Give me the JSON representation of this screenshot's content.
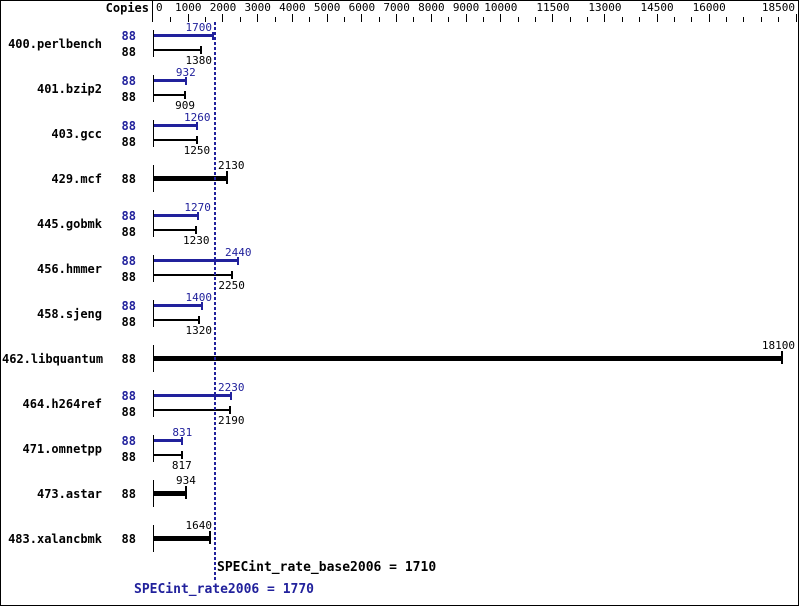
{
  "chart_data": {
    "type": "bar",
    "orientation": "horizontal",
    "copies_header": "Copies",
    "x_axis": {
      "range": [
        0,
        18600
      ],
      "major_ticks": [
        0,
        1000,
        2000,
        3000,
        4000,
        5000,
        6000,
        7000,
        8000,
        9000,
        10000,
        11500,
        13000,
        14500,
        16000,
        18500
      ],
      "minor_tick_step": 500,
      "grid": false
    },
    "benchmarks": [
      {
        "name": "400.perlbench",
        "copies": 88,
        "peak": 1700,
        "base": 1380
      },
      {
        "name": "401.bzip2",
        "copies": 88,
        "peak": 932,
        "base": 909
      },
      {
        "name": "403.gcc",
        "copies": 88,
        "peak": 1260,
        "base": 1250
      },
      {
        "name": "429.mcf",
        "copies": 88,
        "peak": null,
        "base": 2130
      },
      {
        "name": "445.gobmk",
        "copies": 88,
        "peak": 1270,
        "base": 1230
      },
      {
        "name": "456.hmmer",
        "copies": 88,
        "peak": 2440,
        "base": 2250
      },
      {
        "name": "458.sjeng",
        "copies": 88,
        "peak": 1400,
        "base": 1320
      },
      {
        "name": "462.libquantum",
        "copies": 88,
        "peak": null,
        "base": 18100
      },
      {
        "name": "464.h264ref",
        "copies": 88,
        "peak": 2230,
        "base": 2190
      },
      {
        "name": "471.omnetpp",
        "copies": 88,
        "peak": 831,
        "base": 817
      },
      {
        "name": "473.astar",
        "copies": 88,
        "peak": null,
        "base": 934
      },
      {
        "name": "483.xalancbmk",
        "copies": 88,
        "peak": null,
        "base": 1640
      }
    ],
    "reference_line_value": 1770,
    "footer": {
      "base_label": "SPECint_rate_base2006 = 1710",
      "peak_label": "SPECint_rate2006 = 1770",
      "base_value": 1710,
      "peak_value": 1770
    },
    "colors": {
      "peak": "#21219c",
      "base": "#000000",
      "background": "#ffffff"
    }
  }
}
